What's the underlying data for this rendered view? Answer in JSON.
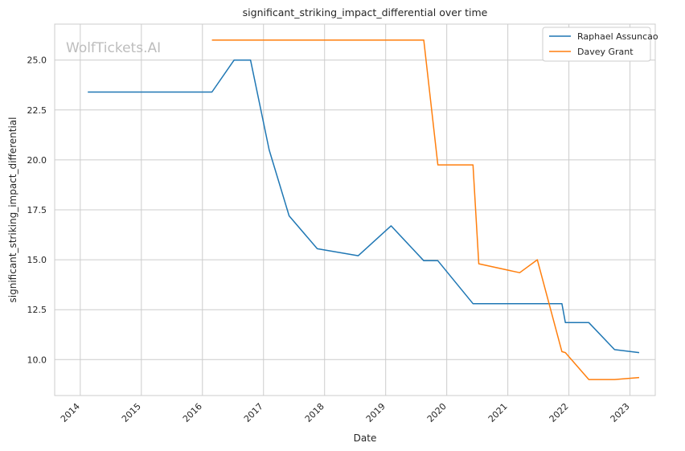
{
  "watermark": "WolfTickets.AI",
  "chart_data": {
    "type": "line",
    "title": "significant_striking_impact_differential over time",
    "xlabel": "Date",
    "ylabel": "significant_striking_impact_differential",
    "xlim": [
      "2013-08-01",
      "2023-06-01"
    ],
    "ylim": [
      8.2,
      26.8
    ],
    "x_ticks": [
      "2014",
      "2015",
      "2016",
      "2017",
      "2018",
      "2019",
      "2020",
      "2021",
      "2022",
      "2023"
    ],
    "y_ticks": [
      "10.0",
      "12.5",
      "15.0",
      "17.5",
      "20.0",
      "22.5",
      "25.0"
    ],
    "grid": true,
    "legend_position": "top-right",
    "series": [
      {
        "name": "Raphael Assuncao",
        "color": "#1f77b4",
        "points": [
          [
            "2014-02-15",
            23.4
          ],
          [
            "2016-02-27",
            23.4
          ],
          [
            "2016-07-09",
            25.0
          ],
          [
            "2016-10-15",
            25.0
          ],
          [
            "2017-02-04",
            20.5
          ],
          [
            "2017-06-03",
            17.2
          ],
          [
            "2017-11-18",
            15.55
          ],
          [
            "2018-07-21",
            15.2
          ],
          [
            "2019-02-02",
            16.7
          ],
          [
            "2019-08-17",
            14.95
          ],
          [
            "2019-11-09",
            14.95
          ],
          [
            "2020-06-06",
            12.8
          ],
          [
            "2021-11-20",
            12.8
          ],
          [
            "2021-12-11",
            11.85
          ],
          [
            "2022-04-30",
            11.85
          ],
          [
            "2022-10-01",
            10.5
          ],
          [
            "2023-02-25",
            10.35
          ]
        ]
      },
      {
        "name": "Davey Grant",
        "color": "#ff7f0e",
        "points": [
          [
            "2016-02-27",
            26.0
          ],
          [
            "2019-08-17",
            26.0
          ],
          [
            "2019-11-09",
            19.75
          ],
          [
            "2020-06-06",
            19.75
          ],
          [
            "2020-07-11",
            14.8
          ],
          [
            "2021-03-13",
            14.35
          ],
          [
            "2021-06-26",
            15.0
          ],
          [
            "2021-11-20",
            10.4
          ],
          [
            "2021-12-11",
            10.35
          ],
          [
            "2022-04-30",
            9.0
          ],
          [
            "2022-10-01",
            9.0
          ],
          [
            "2023-02-25",
            9.1
          ]
        ]
      }
    ]
  }
}
